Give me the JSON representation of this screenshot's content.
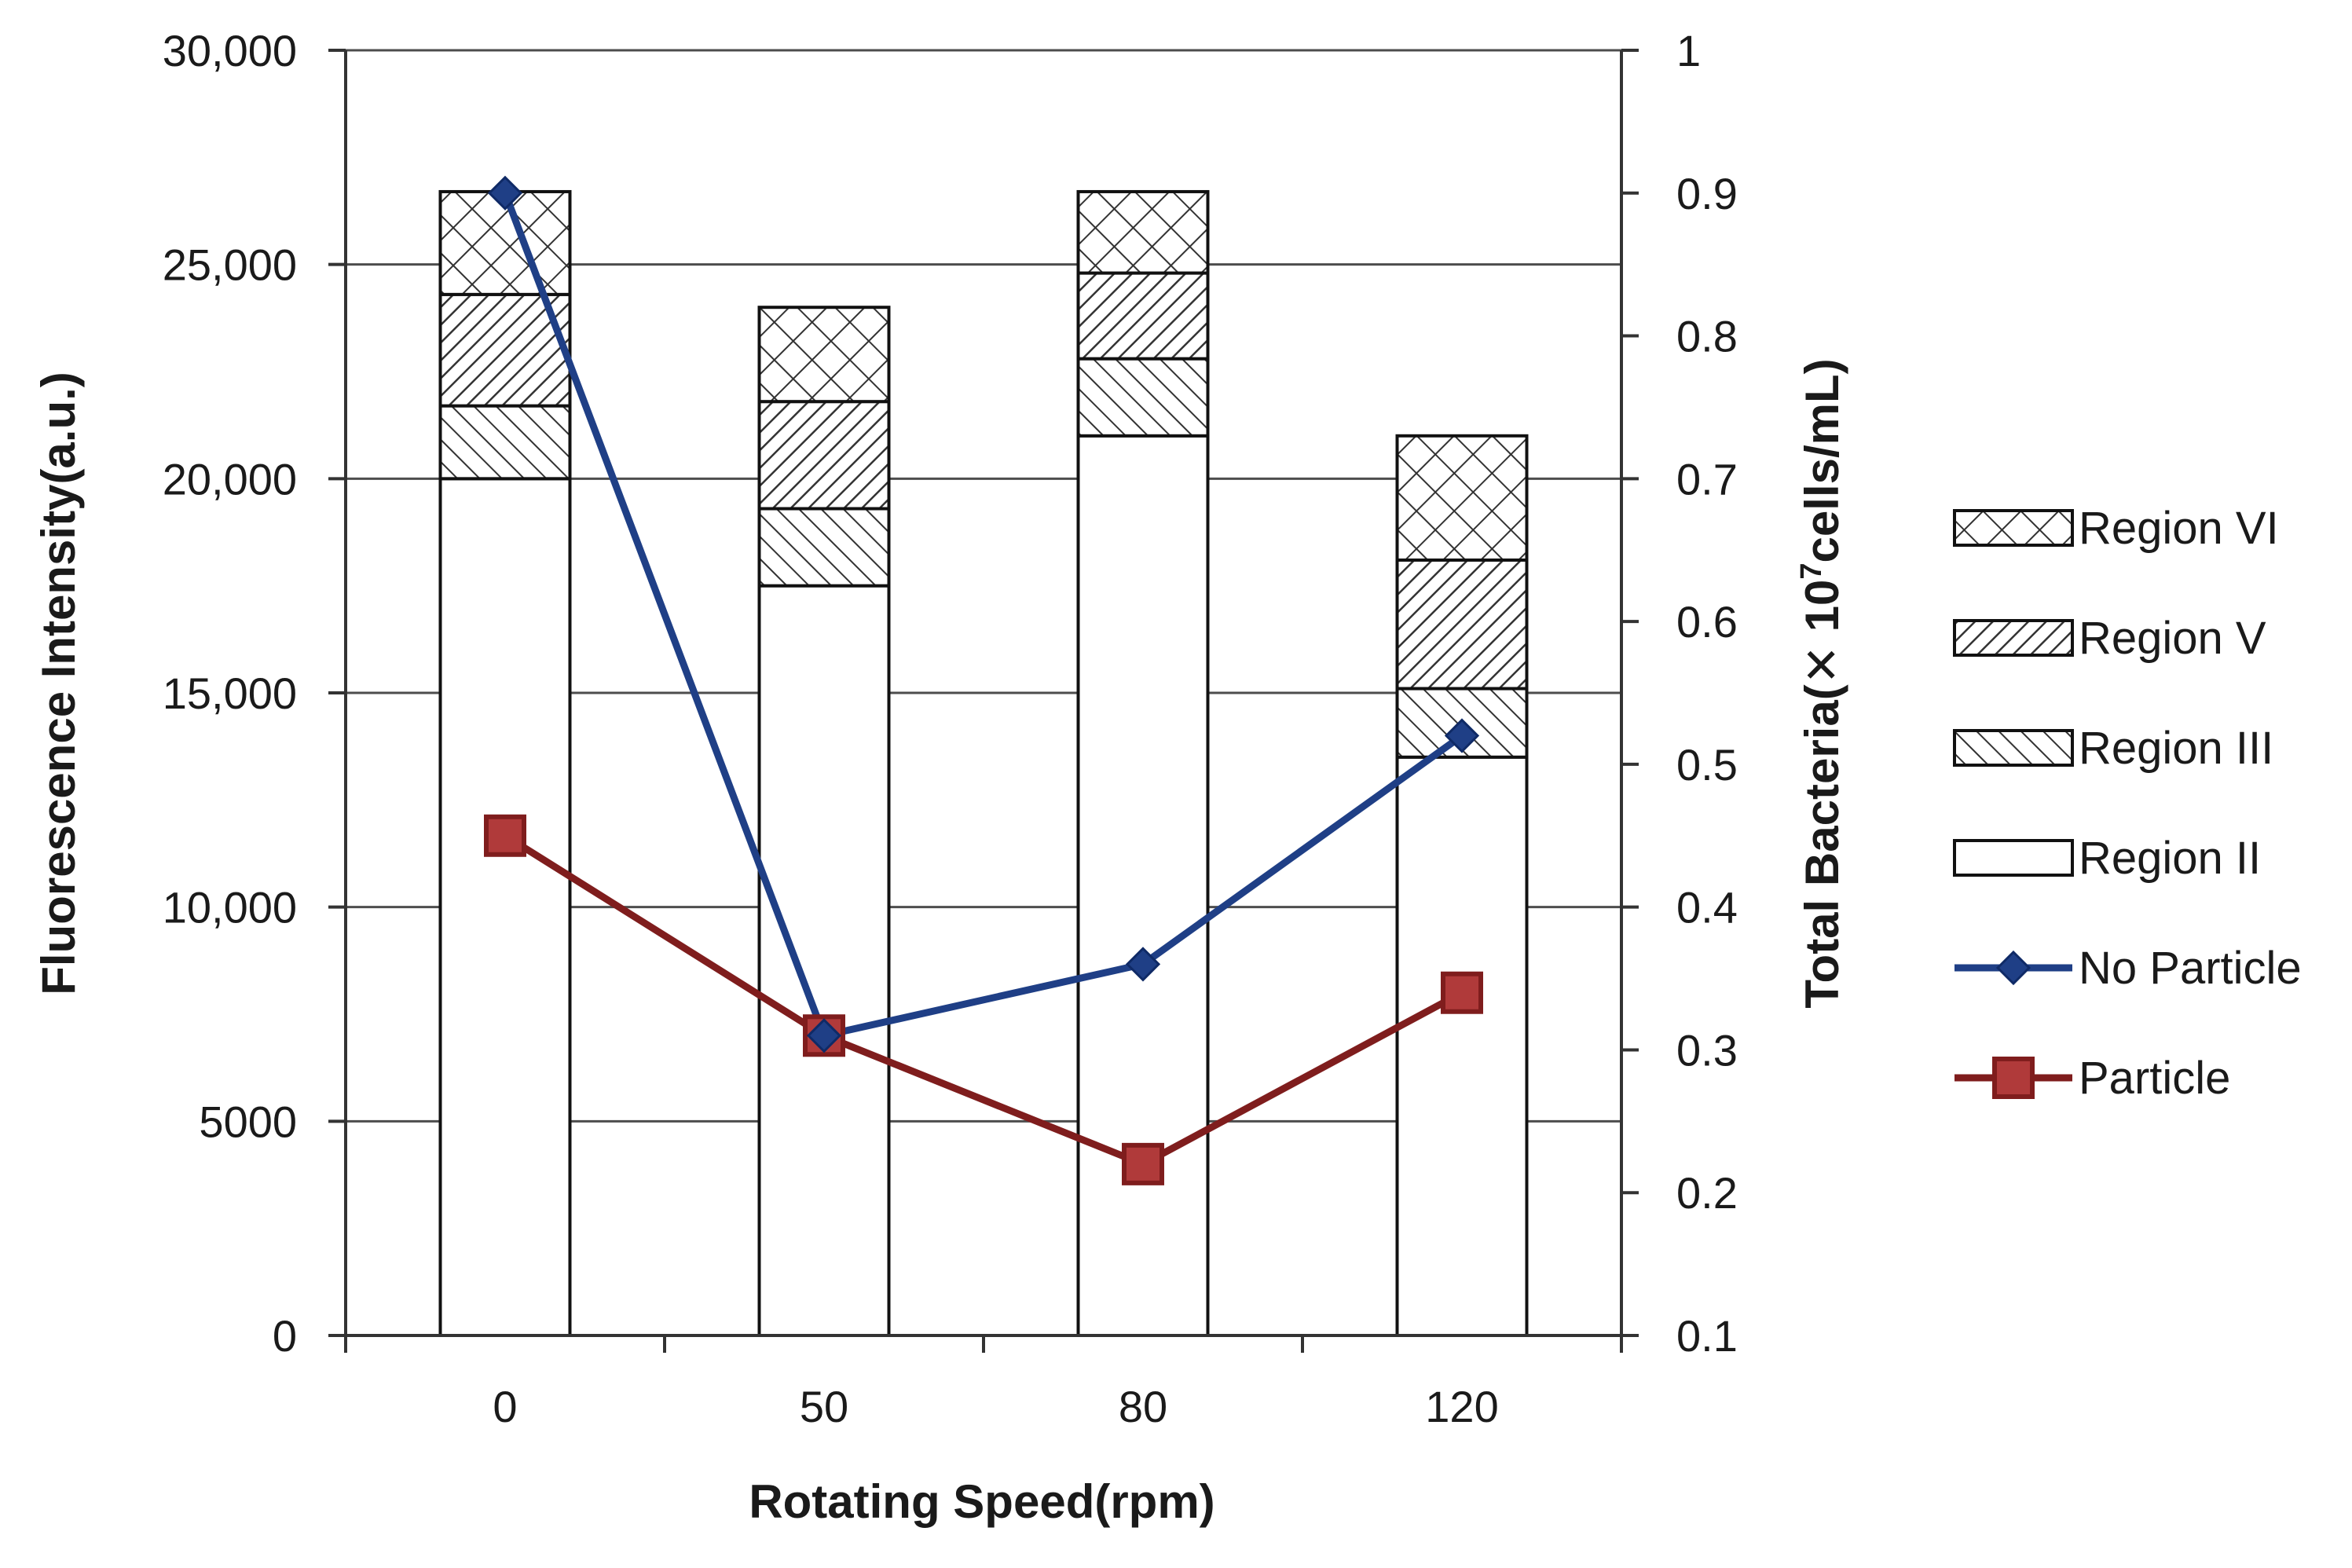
{
  "chart_data": {
    "type": "bar",
    "categories": [
      "0",
      "50",
      "80",
      "120"
    ],
    "stacked_series": [
      {
        "name": "Region II",
        "values": [
          20000,
          17500,
          21000,
          13500
        ],
        "pattern": "blank"
      },
      {
        "name": "Region III",
        "values": [
          1700,
          1800,
          1800,
          1600
        ],
        "pattern": "diag"
      },
      {
        "name": "Region V",
        "values": [
          2600,
          2500,
          2000,
          3000
        ],
        "pattern": "backdiag"
      },
      {
        "name": "Region VI",
        "values": [
          2400,
          2200,
          1900,
          2900
        ],
        "pattern": "cross"
      }
    ],
    "line_series": [
      {
        "name": "No Particle",
        "values": [
          0.9,
          0.31,
          0.36,
          0.52
        ],
        "color": "#1f3f86",
        "marker": "diamond"
      },
      {
        "name": "Particle",
        "values": [
          0.45,
          0.31,
          0.22,
          0.34
        ],
        "color": "#7f1d1d",
        "marker": "square"
      }
    ],
    "xlabel": "Rotating Speed(rpm)",
    "ylabel": "Fluorescence Intensity(a.u.)",
    "y2label_prefix": "Total Bacteria(",
    "y2label_symbol": "✕",
    "y2label_base": " 10",
    "y2label_exp": "7",
    "y2label_suffix": "cells/mL)",
    "ylim": [
      0,
      30000
    ],
    "y2lim": [
      0.1,
      1
    ],
    "yticks": [
      0,
      5000,
      10000,
      15000,
      20000,
      25000,
      30000
    ],
    "yticklabels": [
      "0",
      "5000",
      "10,000",
      "15,000",
      "20,000",
      "25,000",
      "30,000"
    ],
    "y2ticks": [
      0.1,
      0.2,
      0.3,
      0.4,
      0.5,
      0.6,
      0.7,
      0.8,
      0.9,
      1
    ],
    "y2ticklabels": [
      "0.1",
      "0.2",
      "0.3",
      "0.4",
      "0.5",
      "0.6",
      "0.7",
      "0.8",
      "0.9",
      "1"
    ],
    "grid": true,
    "legend_position": "right",
    "legend_order": [
      "Region VI",
      "Region V",
      "Region III",
      "Region II",
      "No Particle",
      "Particle"
    ]
  }
}
